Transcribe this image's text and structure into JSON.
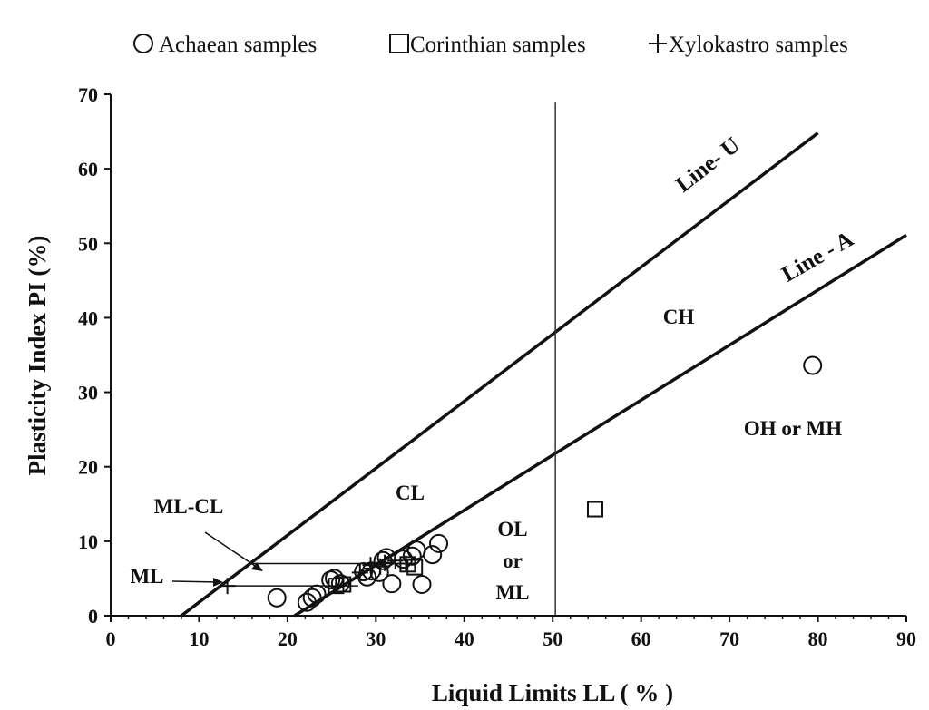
{
  "chart_data": {
    "type": "scatter",
    "title": "",
    "xlabel": "Liquid Limits  LL ( % )",
    "ylabel": "Plasticity Index PI  (%)",
    "xlim": [
      0,
      90
    ],
    "ylim": [
      0,
      70
    ],
    "xticks": [
      0,
      10,
      20,
      30,
      40,
      50,
      60,
      70,
      80,
      90
    ],
    "yticks": [
      0,
      10,
      20,
      30,
      40,
      50,
      60,
      70
    ],
    "grid": false,
    "legend_position": "top",
    "legend": [
      {
        "marker": "circle",
        "label": "Achaean samples"
      },
      {
        "marker": "square",
        "label": "Corinthian samples"
      },
      {
        "marker": "plus",
        "label": "Xylokastro samples"
      }
    ],
    "series": [
      {
        "name": "Achaean samples",
        "marker": "circle",
        "points": [
          [
            18.8,
            2.4
          ],
          [
            22.2,
            1.8
          ],
          [
            22.8,
            2.4
          ],
          [
            23.3,
            2.9
          ],
          [
            24.9,
            4.8
          ],
          [
            25.3,
            5.0
          ],
          [
            26.0,
            4.3
          ],
          [
            28.6,
            5.9
          ],
          [
            29.0,
            5.2
          ],
          [
            29.5,
            6.0
          ],
          [
            30.4,
            5.8
          ],
          [
            30.8,
            7.4
          ],
          [
            31.2,
            7.8
          ],
          [
            31.8,
            4.3
          ],
          [
            33.1,
            7.6
          ],
          [
            34.1,
            8.0
          ],
          [
            34.6,
            8.8
          ],
          [
            35.2,
            4.2
          ],
          [
            36.4,
            8.2
          ],
          [
            37.1,
            9.7
          ],
          [
            79.4,
            33.6
          ]
        ]
      },
      {
        "name": "Corinthian samples",
        "marker": "square",
        "points": [
          [
            25.5,
            4.0
          ],
          [
            26.3,
            4.2
          ],
          [
            33.6,
            6.9
          ],
          [
            34.4,
            6.5
          ],
          [
            54.8,
            14.3
          ]
        ]
      },
      {
        "name": "Xylokastro samples",
        "marker": "plus",
        "points": [
          [
            13.2,
            4.0
          ],
          [
            28.2,
            5.8
          ],
          [
            29.4,
            6.8
          ],
          [
            30.5,
            6.6
          ],
          [
            31.0,
            7.1
          ],
          [
            32.2,
            7.4
          ],
          [
            33.4,
            7.0
          ]
        ]
      }
    ],
    "reference_lines": [
      {
        "name": "Line- U",
        "from": [
          8,
          0
        ],
        "to": [
          80,
          64.8
        ]
      },
      {
        "name": "Line - A",
        "from": [
          20.8,
          0
        ],
        "to": [
          90,
          51.1
        ]
      },
      {
        "name": "LL = 50",
        "vertical_x": 50.3,
        "y_top": 69
      }
    ],
    "guide_lines": [
      {
        "from": [
          15.8,
          7
        ],
        "to": [
          34,
          7
        ]
      },
      {
        "from": [
          13,
          4
        ],
        "to": [
          28,
          4
        ]
      }
    ],
    "labels": {
      "line_u": "Line- U",
      "line_a": "Line - A",
      "ch": "CH",
      "cl": "CL",
      "oh_mh": "OH or MH",
      "ol": "OL",
      "or": "or",
      "ml_lower": "ML",
      "ml_cl": "ML-CL",
      "ml": "ML"
    }
  }
}
